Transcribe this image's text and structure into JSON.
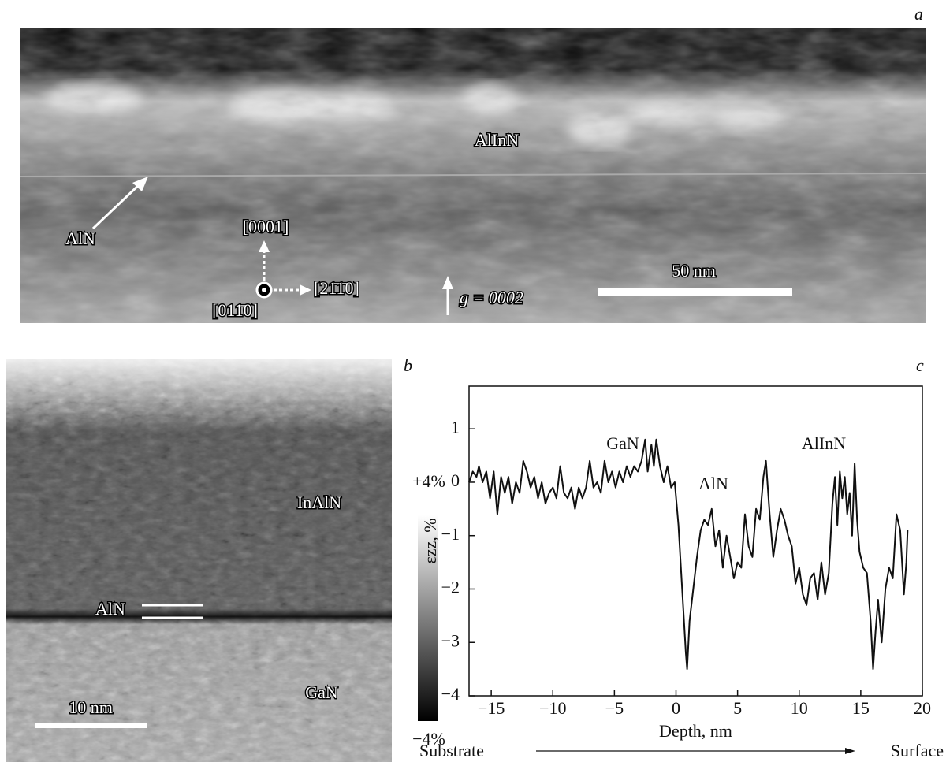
{
  "panel_a": {
    "letter": "a",
    "layer_top": "AlInN",
    "layer_interlayer": "AlN",
    "direction_up": "[0001]",
    "direction_right": "[21̄1̄0]",
    "direction_view": "[011̄0]",
    "g_vector": "g = 0002",
    "scale_bar": "50 nm"
  },
  "panel_b": {
    "letter": "b",
    "layer_top": "InAlN",
    "layer_interlayer": "AlN",
    "layer_bottom": "GaN",
    "scale_bar": "10 nm",
    "colorbar_max": "+4%",
    "colorbar_min": "−4%"
  },
  "chart_data": {
    "type": "line",
    "letter": "c",
    "xlabel": "Depth, nm",
    "ylabel": "εzz, %",
    "annotations": [
      "GaN",
      "AlN",
      "AlInN"
    ],
    "direction_start": "Substrate",
    "direction_end": "Surface",
    "xlim": [
      -16.8,
      20
    ],
    "ylim": [
      -4,
      1.8
    ],
    "xticks": [
      {
        "value": -15,
        "label": "−15"
      },
      {
        "value": -10,
        "label": "−10"
      },
      {
        "value": -5,
        "label": "−5"
      },
      0,
      5,
      10,
      15,
      20
    ],
    "yticks": [
      {
        "value": -4,
        "label": "−4"
      },
      {
        "value": -3,
        "label": "−3"
      },
      {
        "value": -2,
        "label": "−2"
      },
      {
        "value": -1,
        "label": "−1"
      },
      0,
      1
    ],
    "x": [
      -16.8,
      -16.5,
      -16.2,
      -16,
      -15.7,
      -15.4,
      -15.1,
      -14.8,
      -14.5,
      -14.2,
      -13.9,
      -13.6,
      -13.3,
      -13,
      -12.7,
      -12.4,
      -12.1,
      -11.8,
      -11.5,
      -11.2,
      -10.9,
      -10.6,
      -10.3,
      -10,
      -9.7,
      -9.4,
      -9.1,
      -8.8,
      -8.5,
      -8.2,
      -7.9,
      -7.6,
      -7.3,
      -7,
      -6.7,
      -6.4,
      -6.1,
      -5.8,
      -5.5,
      -5.2,
      -4.9,
      -4.6,
      -4.3,
      -4,
      -3.7,
      -3.4,
      -3.1,
      -2.8,
      -2.5,
      -2.3,
      -2,
      -1.8,
      -1.6,
      -1.3,
      -1,
      -0.7,
      -0.4,
      -0.1,
      0.2,
      0.5,
      0.8,
      0.9,
      1.1,
      1.4,
      1.7,
      2,
      2.3,
      2.6,
      2.9,
      3.2,
      3.5,
      3.8,
      4.1,
      4.4,
      4.7,
      5,
      5.3,
      5.6,
      5.9,
      6.2,
      6.5,
      6.8,
      7.1,
      7.3,
      7.6,
      7.9,
      8.2,
      8.5,
      8.8,
      9.1,
      9.4,
      9.7,
      10,
      10.3,
      10.6,
      10.9,
      11.2,
      11.5,
      11.8,
      12.1,
      12.4,
      12.7,
      12.9,
      13.1,
      13.3,
      13.5,
      13.7,
      13.9,
      14.1,
      14.3,
      14.5,
      14.7,
      14.9,
      15.2,
      15.5,
      15.8,
      16,
      16.2,
      16.4,
      16.7,
      17,
      17.3,
      17.6,
      17.9,
      18.2,
      18.5,
      18.7,
      18.8
    ],
    "series": [
      {
        "color": "#111111",
        "values": [
          0,
          0.2,
          0.1,
          0.3,
          0,
          0.2,
          -0.3,
          0.2,
          -0.6,
          0.1,
          -0.2,
          0.1,
          -0.4,
          0,
          -0.2,
          0.4,
          0.2,
          -0.1,
          0.1,
          -0.3,
          0,
          -0.4,
          -0.2,
          -0.1,
          -0.3,
          0.3,
          -0.2,
          -0.3,
          -0.1,
          -0.5,
          -0.1,
          -0.3,
          -0.1,
          0.4,
          -0.1,
          0,
          -0.2,
          0.4,
          0,
          0.2,
          -0.1,
          0.2,
          0,
          0.3,
          0.1,
          0.3,
          0.2,
          0.4,
          0.8,
          0.2,
          0.7,
          0.3,
          0.8,
          0.3,
          0,
          0.3,
          -0.1,
          0,
          -0.8,
          -2,
          -3.2,
          -3.5,
          -2.6,
          -2,
          -1.4,
          -0.9,
          -0.7,
          -0.8,
          -0.5,
          -1.2,
          -0.9,
          -1.6,
          -1,
          -1.4,
          -1.8,
          -1.5,
          -1.6,
          -0.6,
          -1.2,
          -1.4,
          -0.5,
          -0.7,
          0.1,
          0.4,
          -0.6,
          -1.4,
          -0.9,
          -0.5,
          -0.7,
          -1,
          -1.2,
          -1.9,
          -1.6,
          -2.1,
          -2.3,
          -1.8,
          -1.7,
          -2.2,
          -1.5,
          -2.1,
          -1.7,
          -0.4,
          0.1,
          -0.8,
          0.2,
          -0.3,
          0.1,
          -0.6,
          -0.2,
          -1,
          0.35,
          -0.7,
          -1.3,
          -1.6,
          -1.7,
          -2.6,
          -3.5,
          -2.8,
          -2.2,
          -3,
          -2,
          -1.6,
          -1.8,
          -0.6,
          -0.9,
          -2.1,
          -1.5,
          -0.9
        ]
      }
    ]
  }
}
